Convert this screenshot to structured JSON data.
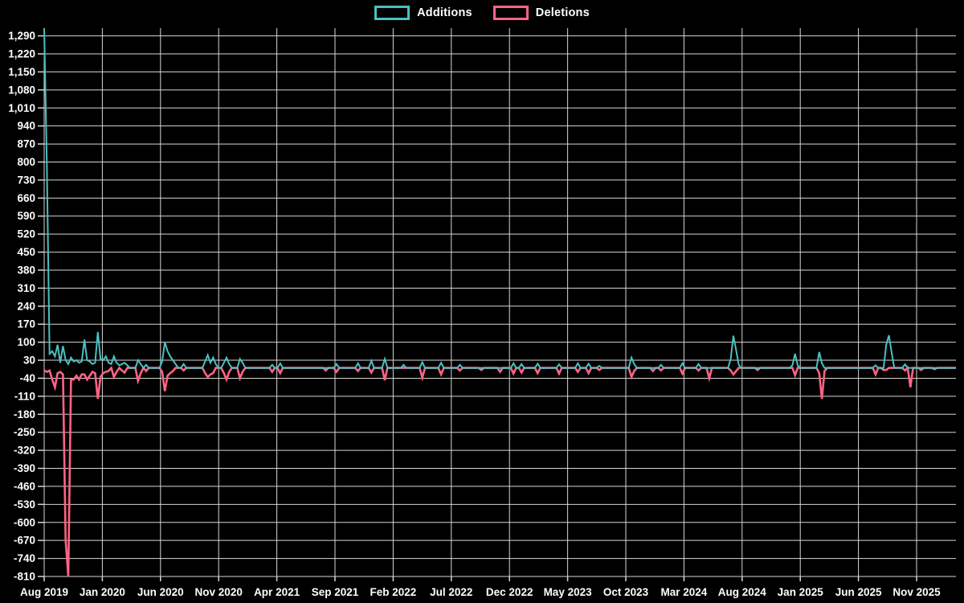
{
  "legend": {
    "items": [
      {
        "label": "Additions",
        "color": "#4bc0c0"
      },
      {
        "label": "Deletions",
        "color": "#ff6384"
      }
    ]
  },
  "colors": {
    "background": "#000000",
    "grid": "#d6d6d6",
    "tick_text": "#ffffff",
    "additions": "#4bc0c0",
    "deletions": "#ff6384"
  },
  "chart_data": {
    "type": "line",
    "title": "",
    "xlabel": "",
    "ylabel": "",
    "legend_position": "top-center",
    "grid": true,
    "background": "black",
    "y_axis": {
      "min": -810,
      "max": 1290,
      "tick_step": 70,
      "plot_top_value": 1320,
      "tick_labels": [
        "1,290",
        "1,220",
        "1,150",
        "1,080",
        "1,010",
        "940",
        "870",
        "800",
        "730",
        "660",
        "590",
        "520",
        "450",
        "380",
        "310",
        "240",
        "170",
        "100",
        "30",
        "-40",
        "-110",
        "-180",
        "-250",
        "-320",
        "-390",
        "-460",
        "-530",
        "-600",
        "-670",
        "-740",
        "-810"
      ]
    },
    "x_axis": {
      "unit": "week",
      "total_weeks": 341,
      "tick_labels": [
        "Aug 2019",
        "Jan 2020",
        "Jun 2020",
        "Nov 2020",
        "Apr 2021",
        "Sep 2021",
        "Feb 2022",
        "Jul 2022",
        "Dec 2022",
        "May 2023",
        "Oct 2023",
        "Mar 2024",
        "Aug 2024",
        "Jan 2025",
        "Jun 2025",
        "Nov 2025"
      ]
    },
    "series": [
      {
        "name": "Additions",
        "color": "#4bc0c0",
        "default_value": 0,
        "points": [
          [
            0,
            1320
          ],
          [
            1,
            795
          ],
          [
            2,
            55
          ],
          [
            3,
            65
          ],
          [
            4,
            45
          ],
          [
            5,
            90
          ],
          [
            6,
            20
          ],
          [
            7,
            85
          ],
          [
            8,
            30
          ],
          [
            9,
            15
          ],
          [
            10,
            40
          ],
          [
            11,
            25
          ],
          [
            12,
            30
          ],
          [
            13,
            20
          ],
          [
            14,
            25
          ],
          [
            15,
            110
          ],
          [
            16,
            30
          ],
          [
            17,
            25
          ],
          [
            18,
            15
          ],
          [
            19,
            20
          ],
          [
            20,
            140
          ],
          [
            21,
            35
          ],
          [
            22,
            30
          ],
          [
            23,
            45
          ],
          [
            24,
            20
          ],
          [
            25,
            15
          ],
          [
            26,
            45
          ],
          [
            27,
            20
          ],
          [
            28,
            10
          ],
          [
            29,
            15
          ],
          [
            30,
            20
          ],
          [
            31,
            10
          ],
          [
            35,
            30
          ],
          [
            36,
            15
          ],
          [
            38,
            12
          ],
          [
            44,
            25
          ],
          [
            45,
            100
          ],
          [
            46,
            65
          ],
          [
            47,
            45
          ],
          [
            48,
            30
          ],
          [
            49,
            15
          ],
          [
            52,
            15
          ],
          [
            60,
            25
          ],
          [
            61,
            50
          ],
          [
            62,
            20
          ],
          [
            63,
            40
          ],
          [
            64,
            15
          ],
          [
            67,
            20
          ],
          [
            68,
            40
          ],
          [
            69,
            15
          ],
          [
            73,
            35
          ],
          [
            74,
            20
          ],
          [
            85,
            12
          ],
          [
            88,
            18
          ],
          [
            109,
            15
          ],
          [
            117,
            18
          ],
          [
            122,
            28
          ],
          [
            127,
            35
          ],
          [
            134,
            12
          ],
          [
            141,
            22
          ],
          [
            148,
            20
          ],
          [
            155,
            12
          ],
          [
            175,
            18
          ],
          [
            178,
            15
          ],
          [
            184,
            16
          ],
          [
            192,
            14
          ],
          [
            199,
            18
          ],
          [
            203,
            16
          ],
          [
            207,
            8
          ],
          [
            219,
            40
          ],
          [
            220,
            15
          ],
          [
            230,
            12
          ],
          [
            238,
            18
          ],
          [
            244,
            15
          ],
          [
            256,
            35
          ],
          [
            257,
            125
          ],
          [
            258,
            70
          ],
          [
            259,
            12
          ],
          [
            279,
            10
          ],
          [
            280,
            55
          ],
          [
            281,
            10
          ],
          [
            289,
            62
          ],
          [
            290,
            18
          ],
          [
            310,
            10
          ],
          [
            314,
            90
          ],
          [
            315,
            127
          ],
          [
            316,
            60
          ],
          [
            321,
            14
          ]
        ]
      },
      {
        "name": "Deletions",
        "color": "#ff6384",
        "default_value": 0,
        "points": [
          [
            0,
            -10
          ],
          [
            1,
            -15
          ],
          [
            2,
            -10
          ],
          [
            3,
            -45
          ],
          [
            4,
            -75
          ],
          [
            5,
            -20
          ],
          [
            6,
            -15
          ],
          [
            7,
            -25
          ],
          [
            8,
            -670
          ],
          [
            9,
            -810
          ],
          [
            10,
            -45
          ],
          [
            11,
            -45
          ],
          [
            12,
            -30
          ],
          [
            13,
            -45
          ],
          [
            14,
            -25
          ],
          [
            15,
            -25
          ],
          [
            16,
            -45
          ],
          [
            17,
            -30
          ],
          [
            18,
            -15
          ],
          [
            19,
            -20
          ],
          [
            20,
            -120
          ],
          [
            21,
            -35
          ],
          [
            22,
            -20
          ],
          [
            23,
            -15
          ],
          [
            24,
            -12
          ],
          [
            26,
            -35
          ],
          [
            27,
            -15
          ],
          [
            29,
            -10
          ],
          [
            30,
            -18
          ],
          [
            35,
            -50
          ],
          [
            36,
            -20
          ],
          [
            38,
            -12
          ],
          [
            44,
            -15
          ],
          [
            45,
            -90
          ],
          [
            46,
            -30
          ],
          [
            47,
            -20
          ],
          [
            48,
            -12
          ],
          [
            52,
            -10
          ],
          [
            60,
            -20
          ],
          [
            61,
            -35
          ],
          [
            62,
            -25
          ],
          [
            63,
            -20
          ],
          [
            67,
            -20
          ],
          [
            68,
            -45
          ],
          [
            69,
            -15
          ],
          [
            73,
            -40
          ],
          [
            74,
            -15
          ],
          [
            85,
            -15
          ],
          [
            88,
            -20
          ],
          [
            105,
            -10
          ],
          [
            109,
            -15
          ],
          [
            117,
            -12
          ],
          [
            122,
            -18
          ],
          [
            127,
            -48
          ],
          [
            141,
            -38
          ],
          [
            148,
            -25
          ],
          [
            155,
            -10
          ],
          [
            163,
            -8
          ],
          [
            170,
            -15
          ],
          [
            175,
            -22
          ],
          [
            178,
            -18
          ],
          [
            184,
            -20
          ],
          [
            192,
            -22
          ],
          [
            199,
            -15
          ],
          [
            203,
            -20
          ],
          [
            207,
            -8
          ],
          [
            219,
            -35
          ],
          [
            220,
            -12
          ],
          [
            227,
            -12
          ],
          [
            230,
            -10
          ],
          [
            238,
            -22
          ],
          [
            244,
            -10
          ],
          [
            248,
            -40
          ],
          [
            256,
            -10
          ],
          [
            257,
            -25
          ],
          [
            258,
            -12
          ],
          [
            266,
            -8
          ],
          [
            280,
            -28
          ],
          [
            289,
            -20
          ],
          [
            290,
            -120
          ],
          [
            291,
            -12
          ],
          [
            310,
            -25
          ],
          [
            313,
            -8
          ],
          [
            314,
            -8
          ],
          [
            321,
            -10
          ],
          [
            323,
            -75
          ],
          [
            327,
            -8
          ],
          [
            332,
            -5
          ]
        ]
      }
    ]
  }
}
